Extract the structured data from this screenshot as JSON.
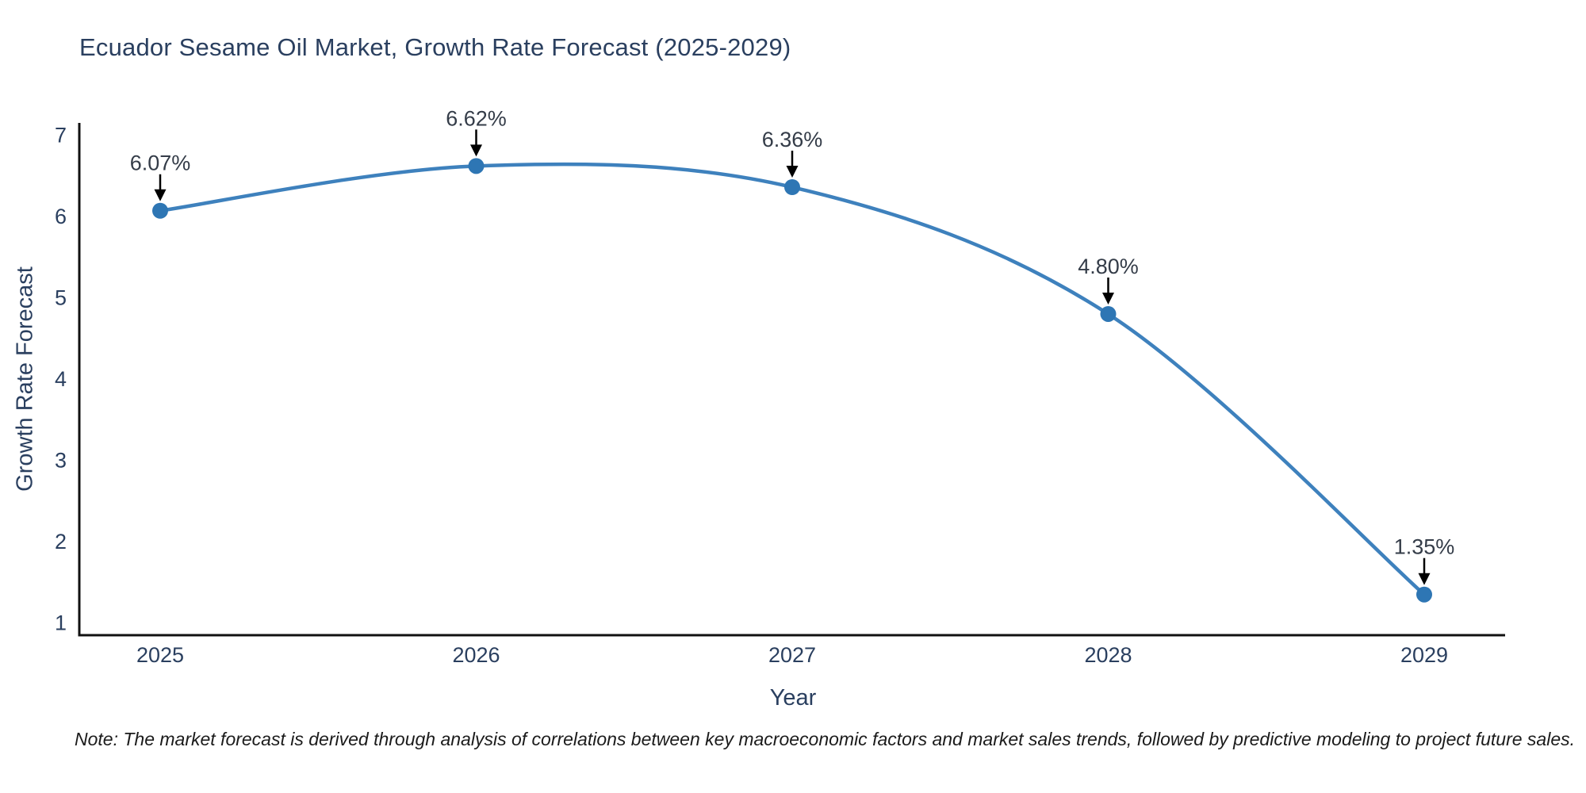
{
  "chart_data": {
    "type": "line",
    "title": "Ecuador Sesame Oil Market, Growth Rate Forecast (2025-2029)",
    "xlabel": "Year",
    "ylabel": "Growth Rate Forecast",
    "categories": [
      "2025",
      "2026",
      "2027",
      "2028",
      "2029"
    ],
    "series": [
      {
        "name": "Growth Rate Forecast",
        "values": [
          6.07,
          6.62,
          6.36,
          4.8,
          1.35
        ]
      }
    ],
    "point_labels": [
      "6.07%",
      "6.62%",
      "6.36%",
      "4.80%",
      "1.35%"
    ],
    "yticks": [
      1,
      2,
      3,
      4,
      5,
      6,
      7
    ],
    "ylim": [
      0.85,
      7.15
    ],
    "line_shape": "spline",
    "grid": false,
    "legend_position": "none",
    "colors": {
      "line": "#3e81bd",
      "marker": "#2e76b4",
      "axis": "#111111",
      "tick_text": "#2a3f5f",
      "annotation_text": "#343c48",
      "arrow": "#000000",
      "title_text": "#2a3f5f",
      "background": "#ffffff"
    },
    "note": "Note: The market forecast is derived through analysis of correlations between key macroeconomic factors and market sales trends, followed by predictive modeling to project future sales."
  }
}
